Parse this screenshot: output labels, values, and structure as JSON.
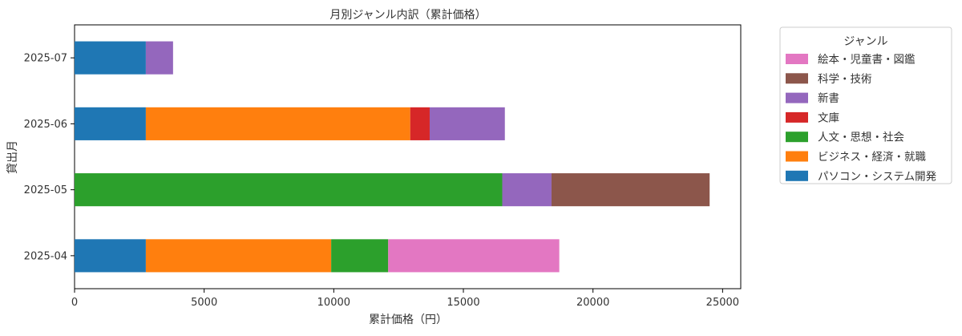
{
  "chart_data": {
    "type": "bar",
    "orientation": "horizontal",
    "stacked": true,
    "title": "月別ジャンル内訳（累計価格）",
    "xlabel": "累計価格（円）",
    "ylabel": "貸出月",
    "categories": [
      "2025-04",
      "2025-05",
      "2025-06",
      "2025-07"
    ],
    "xlim": [
      0,
      25700
    ],
    "xticks": [
      0,
      5000,
      10000,
      15000,
      20000,
      25000
    ],
    "grid": false,
    "legend": {
      "title": "ジャンル",
      "placement": "outside-right-top"
    },
    "series": [
      {
        "name": "パソコン・システム開発",
        "color": "#1f77b4",
        "values": [
          2750,
          0,
          2750,
          2750
        ]
      },
      {
        "name": "ビジネス・経済・就職",
        "color": "#ff7f0e",
        "values": [
          7150,
          0,
          10200,
          0
        ]
      },
      {
        "name": "人文・思想・社会",
        "color": "#2ca02c",
        "values": [
          2200,
          16500,
          0,
          0
        ]
      },
      {
        "name": "文庫",
        "color": "#d62728",
        "values": [
          0,
          0,
          750,
          0
        ]
      },
      {
        "name": "新書",
        "color": "#9467bd",
        "values": [
          0,
          1900,
          2900,
          1050
        ]
      },
      {
        "name": "科学・技術",
        "color": "#8c564b",
        "values": [
          0,
          6100,
          0,
          0
        ]
      },
      {
        "name": "絵本・児童書・図鑑",
        "color": "#e377c2",
        "values": [
          6600,
          0,
          0,
          0
        ]
      }
    ]
  }
}
